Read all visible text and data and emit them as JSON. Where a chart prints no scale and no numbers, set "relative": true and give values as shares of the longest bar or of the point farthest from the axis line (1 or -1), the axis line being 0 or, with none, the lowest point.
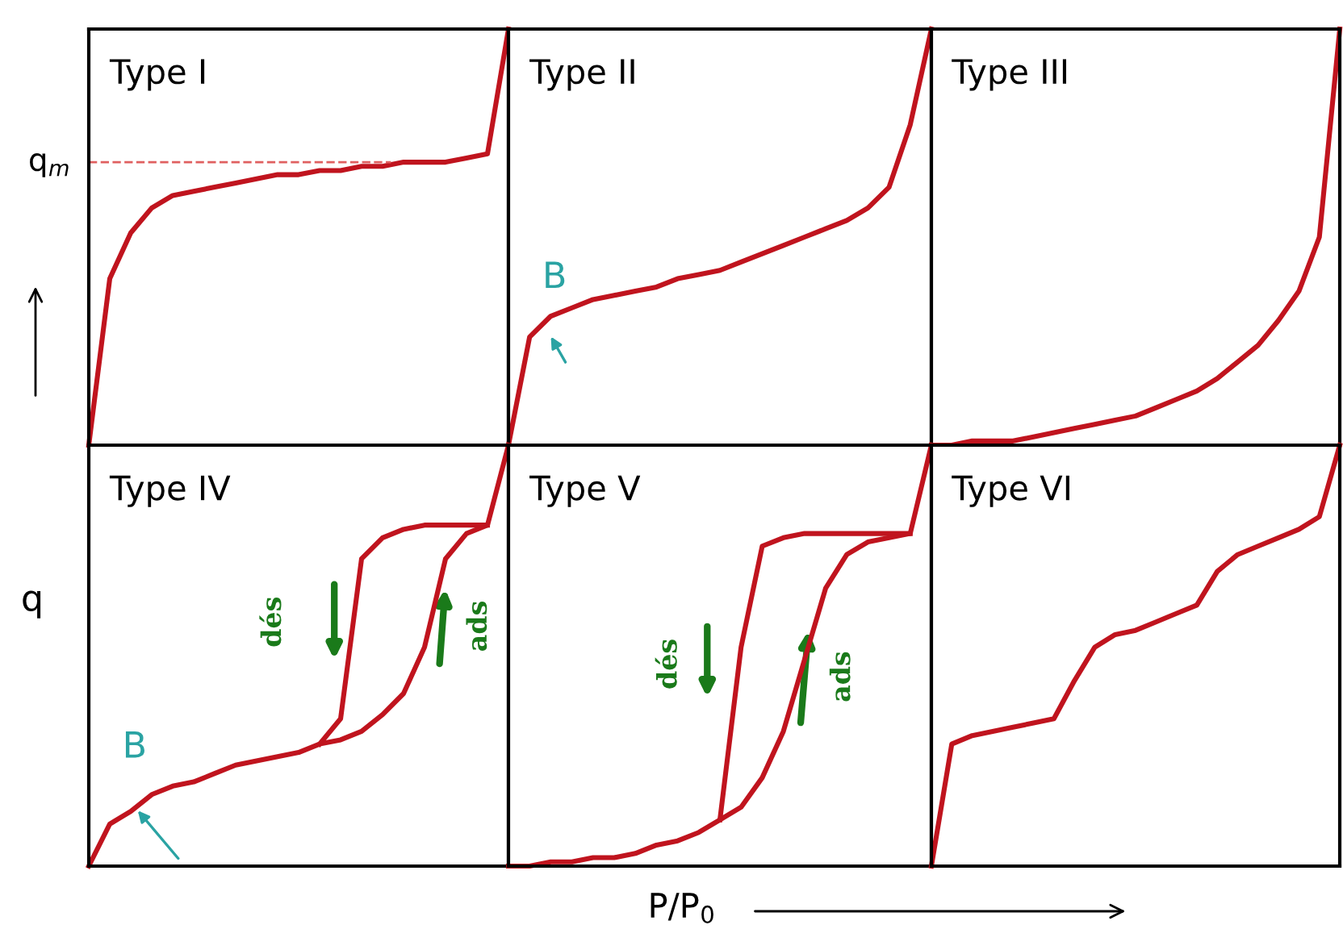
{
  "chart_data": [
    {
      "type": "line",
      "relative": true,
      "title": "Type I",
      "categories": [
        null,
        null,
        null,
        null,
        null,
        null,
        null,
        null,
        null,
        null,
        null,
        null,
        null,
        null,
        null,
        null,
        null,
        null,
        null,
        null,
        null
      ],
      "series": [
        {
          "color": "#c0141e",
          "values": [
            0,
            0.4,
            0.51,
            0.57,
            0.6,
            0.61,
            0.62,
            0.63,
            0.64,
            0.65,
            0.65,
            0.66,
            0.66,
            0.67,
            0.67,
            0.68,
            0.68,
            0.68,
            0.69,
            0.7,
            1
          ]
        }
      ],
      "ref_lines": [
        {
          "axis": "y",
          "value": 0.68,
          "label": "q$_{m}$",
          "color": "#e06060",
          "line_style": "dashed"
        }
      ]
    },
    {
      "type": "line",
      "relative": true,
      "title": "Type II",
      "categories": [
        null,
        null,
        null,
        null,
        null,
        null,
        null,
        null,
        null,
        null,
        null,
        null,
        null,
        null,
        null,
        null,
        null,
        null,
        null,
        null,
        null
      ],
      "series": [
        {
          "color": "#c0141e",
          "values": [
            0,
            0.26,
            0.31,
            0.33,
            0.35,
            0.36,
            0.37,
            0.38,
            0.4,
            0.41,
            0.42,
            0.44,
            0.46,
            0.48,
            0.5,
            0.52,
            0.54,
            0.57,
            0.62,
            0.77,
            1
          ]
        }
      ],
      "annotations": [
        "B"
      ]
    },
    {
      "type": "line",
      "relative": true,
      "title": "Type III",
      "categories": [
        null,
        null,
        null,
        null,
        null,
        null,
        null,
        null,
        null,
        null,
        null,
        null,
        null,
        null,
        null,
        null,
        null,
        null,
        null,
        null,
        null
      ],
      "series": [
        {
          "color": "#c0141e",
          "values": [
            0,
            0,
            0.01,
            0.01,
            0.01,
            0.02,
            0.03,
            0.04,
            0.05,
            0.06,
            0.07,
            0.09,
            0.11,
            0.13,
            0.16,
            0.2,
            0.24,
            0.3,
            0.37,
            0.5,
            1
          ]
        }
      ]
    },
    {
      "type": "line",
      "relative": true,
      "title": "Type IV",
      "ylabel": "q",
      "categories": [
        null,
        null,
        null,
        null,
        null,
        null,
        null,
        null,
        null,
        null,
        null,
        null,
        null,
        null,
        null,
        null,
        null,
        null,
        null,
        null,
        null
      ],
      "series": [
        {
          "color": "#c0141e",
          "values": [
            0,
            0.1,
            0.13,
            0.17,
            0.19,
            0.2,
            0.22,
            0.24,
            0.25,
            0.26,
            0.27,
            0.29,
            0.3,
            0.32,
            0.36,
            0.41,
            0.52,
            0.73,
            0.79,
            0.81,
            1
          ]
        },
        {
          "color": "#c0141e",
          "values": [
            null,
            null,
            null,
            null,
            null,
            null,
            null,
            null,
            null,
            null,
            null,
            0.29,
            0.35,
            0.73,
            0.78,
            0.8,
            0.81,
            0.81,
            0.81,
            0.81,
            null
          ]
        }
      ],
      "annotations": [
        "B",
        "dés",
        "ads"
      ]
    },
    {
      "type": "line",
      "relative": true,
      "title": "Type V",
      "xlabel": "P/P$_{0}$",
      "categories": [
        null,
        null,
        null,
        null,
        null,
        null,
        null,
        null,
        null,
        null,
        null,
        null,
        null,
        null,
        null,
        null,
        null,
        null,
        null,
        null,
        null
      ],
      "series": [
        {
          "color": "#c0141e",
          "values": [
            0,
            0,
            0.01,
            0.01,
            0.02,
            0.02,
            0.03,
            0.05,
            0.06,
            0.08,
            0.11,
            0.14,
            0.21,
            0.32,
            0.49,
            0.66,
            0.74,
            0.77,
            0.78,
            0.79,
            1
          ]
        },
        {
          "color": "#c0141e",
          "values": [
            null,
            null,
            null,
            null,
            null,
            null,
            null,
            null,
            null,
            null,
            0.11,
            0.52,
            0.76,
            0.78,
            0.79,
            0.79,
            0.79,
            0.79,
            0.79,
            0.79,
            null
          ]
        }
      ],
      "annotations": [
        "dés",
        "ads"
      ]
    },
    {
      "type": "line",
      "relative": true,
      "title": "Type VI",
      "categories": [
        null,
        null,
        null,
        null,
        null,
        null,
        null,
        null,
        null,
        null,
        null,
        null,
        null,
        null,
        null,
        null,
        null,
        null,
        null,
        null,
        null
      ],
      "series": [
        {
          "color": "#c0141e",
          "values": [
            0,
            0.29,
            0.31,
            0.32,
            0.33,
            0.34,
            0.35,
            0.44,
            0.52,
            0.55,
            0.56,
            0.58,
            0.6,
            0.62,
            0.7,
            0.74,
            0.76,
            0.78,
            0.8,
            0.83,
            1
          ]
        }
      ]
    }
  ]
}
